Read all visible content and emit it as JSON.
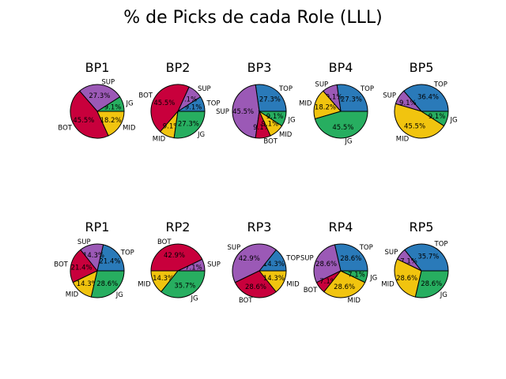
{
  "chart_data": {
    "type": "pie",
    "title": "% de Picks de cada Role (LLL)",
    "colors": {
      "TOP": "#2a7ab9",
      "SUP": "#9b59b6",
      "MID": "#f1c40f",
      "BOT": "#c8003c",
      "JG": "#27ae60"
    },
    "panels": [
      {
        "title": "BP1",
        "slices": [
          {
            "label": "JG",
            "value": 9.1,
            "pct": "9.1%"
          },
          {
            "label": "SUP",
            "value": 27.3,
            "pct": "27.3%"
          },
          {
            "label": "BOT",
            "value": 45.5,
            "pct": "45.5%"
          },
          {
            "label": "MID",
            "value": 18.2,
            "pct": "18.2%"
          }
        ]
      },
      {
        "title": "BP2",
        "slices": [
          {
            "label": "TOP",
            "value": 9.1,
            "pct": "9.1%"
          },
          {
            "label": "SUP",
            "value": 9.1,
            "pct": "9.1%"
          },
          {
            "label": "BOT",
            "value": 45.5,
            "pct": "45.5%"
          },
          {
            "label": "MID",
            "value": 9.1,
            "pct": "9.1%"
          },
          {
            "label": "JG",
            "value": 27.3,
            "pct": "27.3%"
          }
        ]
      },
      {
        "title": "BP3",
        "slices": [
          {
            "label": "TOP",
            "value": 27.3,
            "pct": "27.3%"
          },
          {
            "label": "SUP",
            "value": 45.5,
            "pct": "45.5%"
          },
          {
            "label": "BOT",
            "value": 9.1,
            "pct": "9.1%"
          },
          {
            "label": "MID",
            "value": 9.1,
            "pct": "9.1%"
          },
          {
            "label": "JG",
            "value": 9.1,
            "pct": "9.1%"
          }
        ]
      },
      {
        "title": "BP4",
        "slices": [
          {
            "label": "TOP",
            "value": 27.3,
            "pct": "27.3%"
          },
          {
            "label": "SUP",
            "value": 9.1,
            "pct": "9.1%"
          },
          {
            "label": "MID",
            "value": 18.2,
            "pct": "18.2%"
          },
          {
            "label": "JG",
            "value": 45.5,
            "pct": "45.5%"
          }
        ]
      },
      {
        "title": "BP5",
        "slices": [
          {
            "label": "TOP",
            "value": 36.4,
            "pct": "36.4%"
          },
          {
            "label": "SUP",
            "value": 9.1,
            "pct": "9.1%"
          },
          {
            "label": "MID",
            "value": 45.5,
            "pct": "45.5%"
          },
          {
            "label": "JG",
            "value": 9.1,
            "pct": "9.1%"
          }
        ]
      },
      {
        "title": "RP1",
        "slices": [
          {
            "label": "TOP",
            "value": 21.4,
            "pct": "21.4%"
          },
          {
            "label": "SUP",
            "value": 14.3,
            "pct": "14.3%"
          },
          {
            "label": "BOT",
            "value": 21.4,
            "pct": "21.4%"
          },
          {
            "label": "MID",
            "value": 14.3,
            "pct": "14.3%"
          },
          {
            "label": "JG",
            "value": 28.6,
            "pct": "28.6%"
          }
        ]
      },
      {
        "title": "RP2",
        "slices": [
          {
            "label": "SUP",
            "value": 7.1,
            "pct": "7.1%"
          },
          {
            "label": "BOT",
            "value": 42.9,
            "pct": "42.9%"
          },
          {
            "label": "MID",
            "value": 14.3,
            "pct": "14.3%"
          },
          {
            "label": "JG",
            "value": 35.7,
            "pct": "35.7%"
          }
        ]
      },
      {
        "title": "RP3",
        "slices": [
          {
            "label": "TOP",
            "value": 14.3,
            "pct": "14.3%"
          },
          {
            "label": "SUP",
            "value": 42.9,
            "pct": "42.9%"
          },
          {
            "label": "BOT",
            "value": 28.6,
            "pct": "28.6%"
          },
          {
            "label": "MID",
            "value": 14.3,
            "pct": "14.3%"
          }
        ]
      },
      {
        "title": "RP4",
        "slices": [
          {
            "label": "TOP",
            "value": 28.6,
            "pct": "28.6%"
          },
          {
            "label": "SUP",
            "value": 28.6,
            "pct": "28.6%"
          },
          {
            "label": "BOT",
            "value": 7.1,
            "pct": "7.1%"
          },
          {
            "label": "MID",
            "value": 28.6,
            "pct": "28.6%"
          },
          {
            "label": "JG",
            "value": 7.1,
            "pct": "7.1%"
          }
        ]
      },
      {
        "title": "RP5",
        "slices": [
          {
            "label": "TOP",
            "value": 35.7,
            "pct": "35.7%"
          },
          {
            "label": "SUP",
            "value": 7.1,
            "pct": "7.1%"
          },
          {
            "label": "MID",
            "value": 28.6,
            "pct": "28.6%"
          },
          {
            "label": "JG",
            "value": 28.6,
            "pct": "28.6%"
          }
        ]
      }
    ]
  }
}
